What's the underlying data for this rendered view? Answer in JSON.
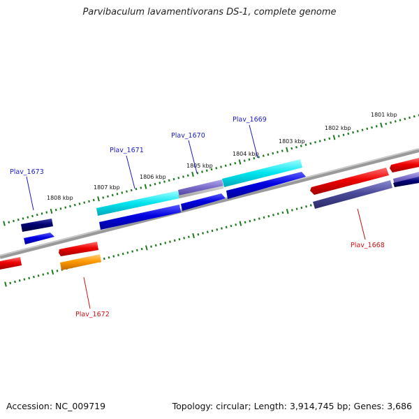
{
  "title": "Parvibaculum lavamentivorans DS-1, complete genome",
  "footer": {
    "accession": "Accession: NC_009719",
    "summary": "Topology: circular; Length: 3,914,745 bp; Genes: 3,686"
  },
  "scale_labels": [
    "1801 kbp",
    "1802 kbp",
    "1803 kbp",
    "1804 kbp",
    "1805 kbp",
    "1806 kbp",
    "1807 kbp",
    "1808 kbp"
  ],
  "gene_labels": [
    {
      "text": "Plav_1673",
      "color": "#1a1ac8"
    },
    {
      "text": "Plav_1671",
      "color": "#1a1ac8"
    },
    {
      "text": "Plav_1670",
      "color": "#1a1ac8"
    },
    {
      "text": "Plav_1669",
      "color": "#1a1ac8"
    },
    {
      "text": "Plav_1668",
      "color": "#cc1111"
    },
    {
      "text": "Plav_1672",
      "color": "#cc1111"
    }
  ],
  "colors": {
    "backbone": "#808080",
    "ruler": "#1f7a1f",
    "cds_red": "#ee0000",
    "cds_blue": "#0000e0",
    "cds_navy": "#000070",
    "cds_cyan": "#00e4ee",
    "cds_slate": "#4a4a9a",
    "cds_orange": "#ff9900",
    "cds_lavender": "#7a6ac8"
  }
}
